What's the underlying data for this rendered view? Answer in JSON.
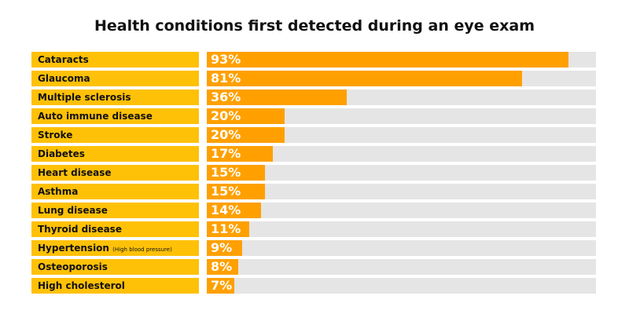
{
  "chart_data": {
    "type": "bar",
    "orientation": "horizontal",
    "title": "Health conditions first detected during an eye exam",
    "categories": [
      "Cataracts",
      "Glaucoma",
      "Multiple sclerosis",
      "Auto immune disease",
      "Stroke",
      "Diabetes",
      "Heart disease",
      "Asthma",
      "Lung disease",
      "Thyroid disease",
      "Hypertension",
      "Osteoporosis",
      "High cholesterol"
    ],
    "category_notes": [
      "",
      "",
      "",
      "",
      "",
      "",
      "",
      "",
      "",
      "",
      "(High blood pressure)",
      "",
      ""
    ],
    "values": [
      93,
      81,
      36,
      20,
      20,
      17,
      15,
      15,
      14,
      11,
      9,
      8,
      7
    ],
    "value_labels": [
      "93%",
      "81%",
      "36%",
      "20%",
      "20%",
      "17%",
      "15%",
      "15%",
      "14%",
      "11%",
      "9%",
      "8%",
      "7%"
    ],
    "unit": "%",
    "xlim": [
      0,
      100
    ],
    "grid": false,
    "colors": {
      "label_bg": "#FFC107",
      "bar": "#FFA000",
      "track": "#E5E5E5",
      "value_text": "#FFFFFF"
    }
  }
}
